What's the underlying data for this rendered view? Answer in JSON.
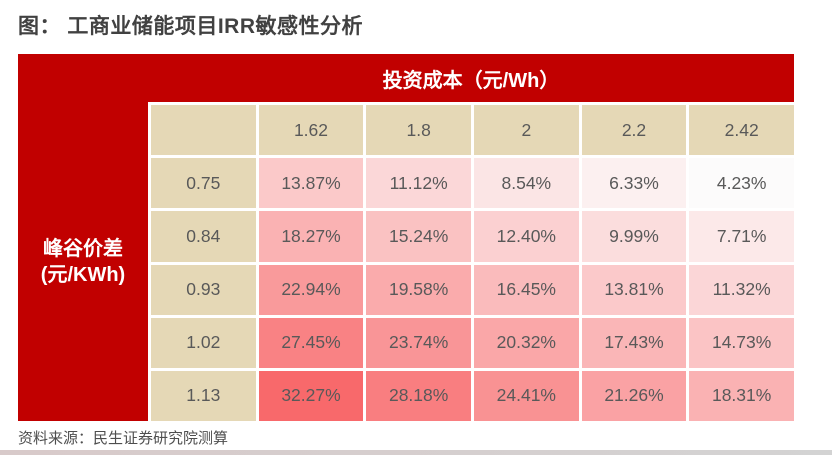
{
  "title": "图： 工商业储能项目IRR敏感性分析",
  "source": "资料来源：民生证券研究院测算",
  "colors": {
    "table_red": "#C10000",
    "header_beige": "#E5D8B6",
    "cell_text": "#595959",
    "heatmap_min_color": "#FCFBFB",
    "heatmap_max_color": "#F8696B",
    "bottom_bar_left": "#D8CACA",
    "bottom_bar_right": "#D3D3D3"
  },
  "table": {
    "col_group_header": "投资成本（元/Wh）",
    "row_group_header_line1": "峰谷价差",
    "row_group_header_line2": "(元/KWh)",
    "column_headers": [
      "1.62",
      "1.8",
      "2",
      "2.2",
      "2.42"
    ],
    "rows": [
      {
        "label": "0.75",
        "values": [
          "13.87%",
          "11.12%",
          "8.54%",
          "6.33%",
          "4.23%"
        ]
      },
      {
        "label": "0.84",
        "values": [
          "18.27%",
          "15.24%",
          "12.40%",
          "9.99%",
          "7.71%"
        ]
      },
      {
        "label": "0.93",
        "values": [
          "22.94%",
          "19.58%",
          "16.45%",
          "13.81%",
          "11.32%"
        ]
      },
      {
        "label": "1.02",
        "values": [
          "27.45%",
          "23.74%",
          "20.32%",
          "17.43%",
          "14.73%"
        ]
      },
      {
        "label": "1.13",
        "values": [
          "32.27%",
          "28.18%",
          "24.41%",
          "21.26%",
          "18.31%"
        ]
      }
    ]
  },
  "chart_data": {
    "type": "heatmap",
    "title": "工商业储能项目IRR敏感性分析",
    "x_axis_label": "投资成本（元/Wh）",
    "y_axis_label": "峰谷价差（元/KWh）",
    "x_categories": [
      1.62,
      1.8,
      2,
      2.2,
      2.42
    ],
    "y_categories": [
      0.75,
      0.84,
      0.93,
      1.02,
      1.13
    ],
    "values_pct": [
      [
        13.87,
        11.12,
        8.54,
        6.33,
        4.23
      ],
      [
        18.27,
        15.24,
        12.4,
        9.99,
        7.71
      ],
      [
        22.94,
        19.58,
        16.45,
        13.81,
        11.32
      ],
      [
        27.45,
        23.74,
        20.32,
        17.43,
        14.73
      ],
      [
        32.27,
        28.18,
        24.41,
        21.26,
        18.31
      ]
    ],
    "color_scale": {
      "min_value": 4.23,
      "max_value": 32.27,
      "min_color": "#FCFBFB",
      "max_color": "#F8696B"
    },
    "legend": "none",
    "source": "资料来源：民生证券研究院测算"
  }
}
